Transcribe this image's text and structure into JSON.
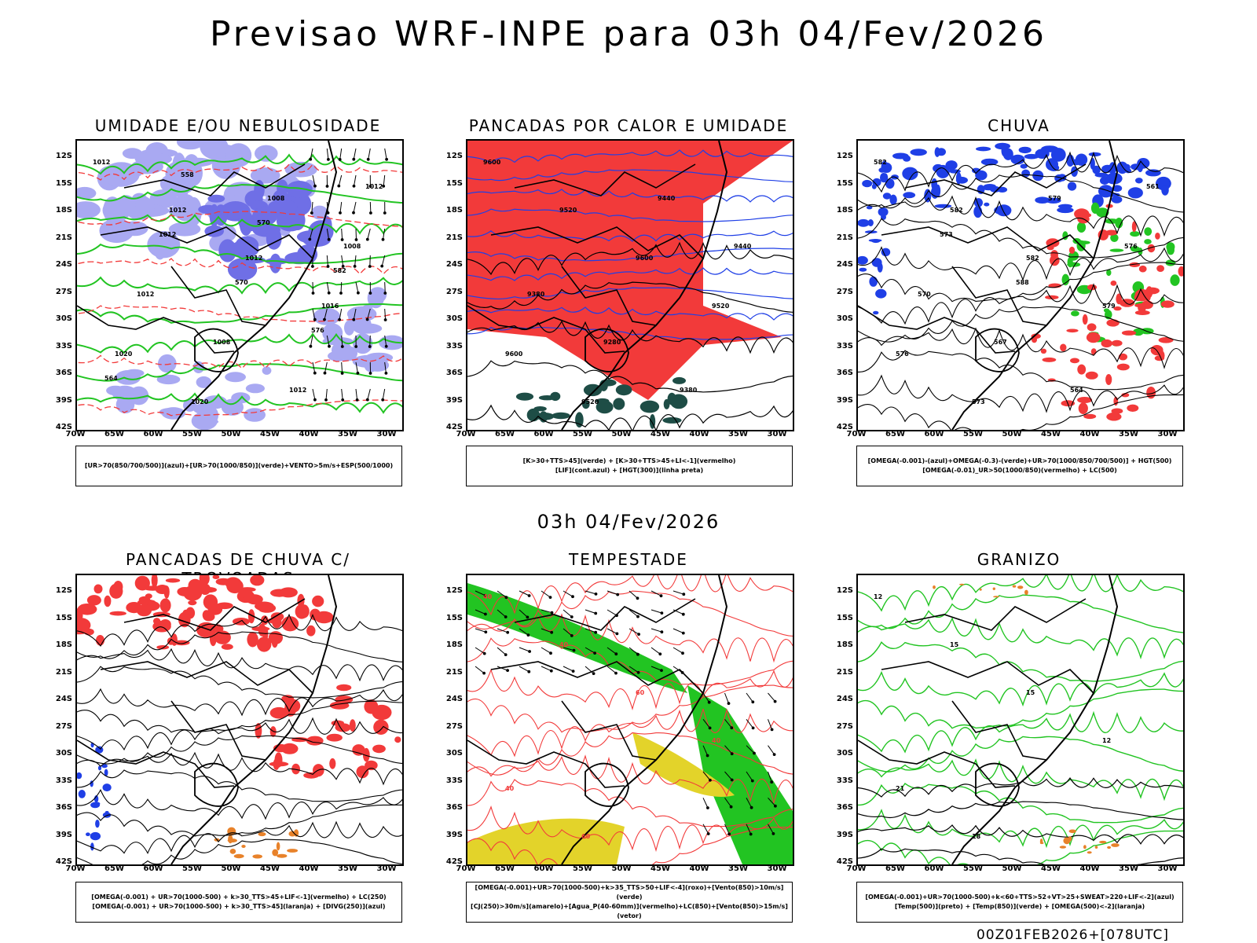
{
  "title": "Previsao WRF-INPE  para 03h 04/Fev/2026",
  "mid_date": "03h 04/Fev/2026",
  "footer": "00Z01FEB2026+[078UTC]",
  "lat_ticks": [
    "12S",
    "15S",
    "18S",
    "21S",
    "24S",
    "27S",
    "30S",
    "33S",
    "36S",
    "39S",
    "42S"
  ],
  "lon_ticks": [
    "70W",
    "65W",
    "60W",
    "55W",
    "50W",
    "45W",
    "40W",
    "35W",
    "30W"
  ],
  "panels": [
    {
      "title": "UMIDADE E/OU NEBULOSIDADE",
      "legend": [
        "[UR>70(850/700/500)](azul)+[UR>70(1000/850)](verde)+VENTO>5m/s+ESP(500/1000)"
      ],
      "labels": [
        "1012",
        "1012",
        "1012",
        "1016",
        "1020",
        "1020",
        "1008",
        "1008",
        "1012",
        "1008",
        "1012",
        "1012",
        "1012",
        "570",
        "576",
        "564",
        "558",
        "570",
        "582"
      ]
    },
    {
      "title": "PANCADAS POR CALOR E UMIDADE",
      "legend": [
        "[K>30+TTS>45](verde) + [K>30+TTS>45+LI<-1](vermelho)",
        "[LIF](cont.azul) + [HGT(300)](linha preta)"
      ],
      "labels": [
        "9600",
        "9520",
        "9600",
        "9520",
        "9600",
        "9520",
        "9440",
        "9440",
        "9380",
        "9280",
        "9380"
      ]
    },
    {
      "title": "CHUVA",
      "legend": [
        "[OMEGA(-0.001)-(azul)+OMEGA(-0.3)-(verde)+UR>70(1000/850/700/500)] + HGT(500)",
        "[OMEGA(-0.01)_UR>50(1000/850)(vermelho) + LC(500)"
      ],
      "labels": [
        "582",
        "582",
        "582",
        "579",
        "576",
        "573",
        "579",
        "576",
        "570",
        "567",
        "564",
        "561",
        "573",
        "588"
      ]
    },
    {
      "title": "PANCADAS DE CHUVA C/ TROVOADAS",
      "legend": [
        "[OMEGA(-0.001) + UR>70(1000-500) + k>30_TTS>45+LIF<-1](vermelho) + LC(250)",
        "[OMEGA(-0.001) + UR>70(1000-500) + k>30_TTS>45](laranja) + [DIVG(250)](azul)"
      ],
      "labels": []
    },
    {
      "title": "TEMPESTADE",
      "legend": [
        "[OMEGA(-0.001)+UR>70(1000-500)+k>35_TTS>50+LIF<-4](roxo)+[Vento(850)>10m/s](verde)",
        "[CJ(250)>30m/s](amarelo)+[Agua_P(40-60mm)](vermelho)+LC(850)+[Vento(850)>15m/s](vetor)"
      ],
      "labels": [
        "40",
        "40",
        "60",
        "40",
        "40",
        "60"
      ]
    },
    {
      "title": "GRANIZO",
      "legend": [
        "[OMEGA(-0.001)+UR>70(1000-500)+k<60+TTS>52+VT>25+SWEAT>220+LIF<-2](azul)",
        "[Temp(500)](preto) + [Temp(850)](verde) + [OMEGA(500)<-2](laranja)"
      ],
      "labels": [
        "12",
        "15",
        "15",
        "12",
        "21",
        "18"
      ]
    }
  ],
  "colors": {
    "red": "#f23a3a",
    "green": "#22c422",
    "blue": "#1f3fe6",
    "lightblue": "#a9a9f2",
    "midblue": "#6f6fe6",
    "darkgreen": "#1e4d46",
    "yellow": "#e3d32a",
    "orange": "#e8822a",
    "purple": "#8833aa"
  }
}
